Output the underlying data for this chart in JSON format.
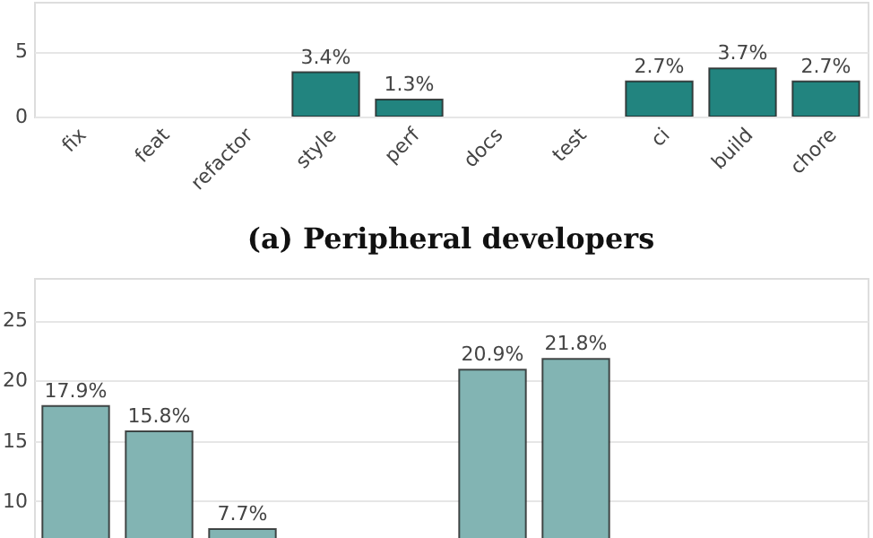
{
  "chart_data": [
    {
      "type": "bar",
      "title": "(a) Peripheral developers",
      "categories": [
        "fix",
        "feat",
        "refactor",
        "style",
        "perf",
        "docs",
        "test",
        "ci",
        "build",
        "chore"
      ],
      "series": [
        {
          "color": "#22847f",
          "values": [
            null,
            null,
            null,
            3.4,
            1.3,
            null,
            null,
            2.7,
            3.7,
            2.7
          ],
          "value_labels": [
            null,
            null,
            null,
            "3.4%",
            "1.3%",
            null,
            null,
            "2.7%",
            "3.7%",
            "2.7%"
          ]
        }
      ],
      "ylim": [
        0,
        8.8
      ],
      "yticks": [
        0,
        5
      ],
      "grid": "y"
    },
    {
      "type": "bar",
      "categories": [
        null,
        null,
        null,
        null,
        null,
        null,
        null,
        null,
        null,
        null
      ],
      "series": [
        {
          "color": "#82b4b3",
          "values": [
            17.9,
            15.8,
            7.7,
            null,
            null,
            20.9,
            21.8,
            null,
            null,
            null
          ],
          "value_labels": [
            "17.9%",
            "15.8%",
            "7.7%",
            null,
            null,
            "20.9%",
            "21.8%",
            null,
            null,
            null
          ]
        }
      ],
      "ylim": [
        6.8,
        28.5
      ],
      "yticks": [
        10,
        15,
        20,
        25
      ],
      "grid": "y",
      "tick_labels": "y"
    }
  ]
}
